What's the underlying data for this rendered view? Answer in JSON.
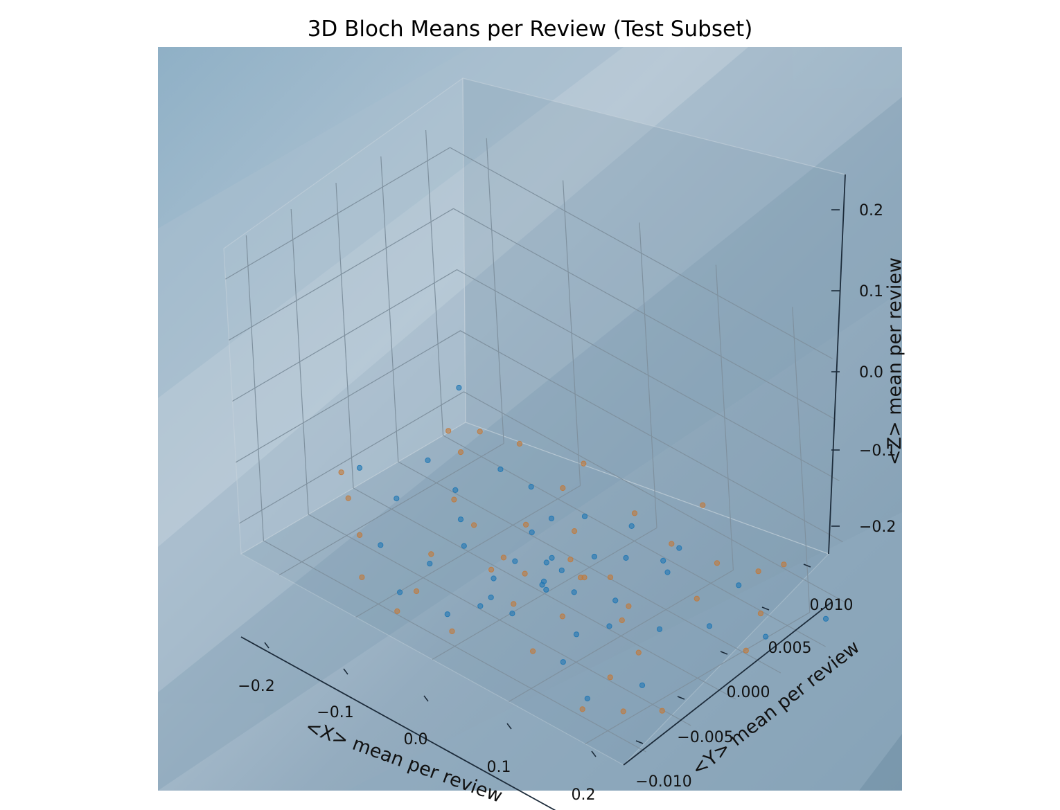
{
  "chart_data": {
    "type": "scatter",
    "projection": "3d",
    "title": "3D Bloch Means per Review (Test Subset)",
    "xlabel": "<X> mean per review",
    "ylabel": "<Y> mean per review",
    "zlabel": "<Z> mean per review",
    "xlim": [
      -0.25,
      0.25
    ],
    "ylim": [
      -0.0125,
      0.0125
    ],
    "zlim": [
      -0.25,
      0.25
    ],
    "x_ticks": [
      -0.2,
      -0.1,
      0.0,
      0.1,
      0.2
    ],
    "y_ticks": [
      -0.01,
      -0.005,
      0.0,
      0.005,
      0.01
    ],
    "z_ticks": [
      -0.2,
      -0.1,
      0.0,
      0.1,
      0.2
    ],
    "x_tick_labels": [
      "−0.2",
      "−0.1",
      "0.0",
      "0.1",
      "0.2"
    ],
    "y_tick_labels": [
      "−0.010",
      "−0.005",
      "0.000",
      "0.005",
      "0.010"
    ],
    "z_tick_labels": [
      "−0.2",
      "−0.1",
      "0.0",
      "0.1",
      "0.2"
    ],
    "grid": true,
    "series": [
      {
        "color": "#1f77b4",
        "points": [
          [
            -0.02,
            0.002,
            -0.23
          ],
          [
            0.01,
            -0.001,
            -0.22
          ],
          [
            -0.05,
            0.003,
            -0.21
          ],
          [
            0.04,
            0.0,
            -0.22
          ],
          [
            0.0,
            0.001,
            -0.2
          ],
          [
            -0.08,
            -0.002,
            -0.21
          ],
          [
            0.07,
            0.002,
            -0.23
          ],
          [
            -0.03,
            -0.003,
            -0.22
          ],
          [
            0.02,
            0.004,
            -0.21
          ],
          [
            -0.12,
            0.001,
            -0.22
          ],
          [
            0.11,
            -0.002,
            -0.21
          ],
          [
            -0.01,
            -0.005,
            -0.22
          ],
          [
            0.05,
            0.005,
            -0.2
          ],
          [
            -0.06,
            0.006,
            -0.22
          ],
          [
            0.09,
            -0.004,
            -0.22
          ],
          [
            -0.15,
            0.003,
            -0.21
          ],
          [
            0.14,
            0.001,
            -0.22
          ],
          [
            0.0,
            -0.007,
            -0.21
          ],
          [
            -0.04,
            0.008,
            -0.22
          ],
          [
            0.03,
            -0.006,
            -0.21
          ],
          [
            -0.09,
            -0.005,
            -0.22
          ],
          [
            0.08,
            0.007,
            -0.22
          ],
          [
            -0.18,
            -0.001,
            -0.21
          ],
          [
            0.17,
            0.004,
            -0.22
          ],
          [
            0.01,
            0.009,
            -0.21
          ],
          [
            -0.02,
            -0.009,
            -0.22
          ],
          [
            0.12,
            -0.008,
            -0.21
          ],
          [
            -0.11,
            0.008,
            -0.22
          ],
          [
            -0.24,
            0.0,
            -0.21
          ],
          [
            0.22,
            0.006,
            -0.22
          ],
          [
            0.2,
            -0.006,
            -0.21
          ],
          [
            -0.21,
            0.005,
            -0.22
          ],
          [
            0.06,
            0.01,
            -0.22
          ],
          [
            -0.07,
            -0.01,
            -0.21
          ],
          [
            0.24,
            0.011,
            -0.22
          ],
          [
            -0.13,
            -0.007,
            -0.2
          ],
          [
            0.15,
            0.009,
            -0.21
          ],
          [
            0.0,
            0.0,
            -0.23
          ],
          [
            -0.05,
            0.001,
            -0.24
          ],
          [
            0.04,
            -0.003,
            -0.19
          ],
          [
            -0.2,
            0.008,
            -0.12
          ],
          [
            -0.1,
            0.004,
            -0.15
          ],
          [
            0.05,
            -0.002,
            -0.16
          ],
          [
            0.1,
            0.005,
            -0.17
          ],
          [
            0.2,
            -0.012,
            -0.18
          ]
        ]
      },
      {
        "color": "#c2793a",
        "points": [
          [
            0.03,
            0.002,
            -0.22
          ],
          [
            -0.04,
            -0.001,
            -0.21
          ],
          [
            0.06,
            -0.003,
            -0.22
          ],
          [
            -0.07,
            0.004,
            -0.22
          ],
          [
            0.1,
            0.001,
            -0.21
          ],
          [
            -0.1,
            -0.004,
            -0.22
          ],
          [
            0.13,
            0.006,
            -0.22
          ],
          [
            -0.14,
            0.002,
            -0.21
          ],
          [
            0.0,
            0.003,
            -0.22
          ],
          [
            0.02,
            -0.005,
            -0.21
          ],
          [
            -0.03,
            0.006,
            -0.22
          ],
          [
            0.16,
            -0.003,
            -0.21
          ],
          [
            -0.17,
            -0.006,
            -0.22
          ],
          [
            0.19,
            0.008,
            -0.22
          ],
          [
            -0.19,
            0.007,
            -0.21
          ],
          [
            0.08,
            -0.008,
            -0.22
          ],
          [
            -0.08,
            0.009,
            -0.21
          ],
          [
            0.05,
            0.01,
            -0.22
          ],
          [
            -0.06,
            -0.009,
            -0.21
          ],
          [
            0.21,
            -0.009,
            -0.22
          ],
          [
            -0.22,
            -0.003,
            -0.22
          ],
          [
            0.11,
            0.01,
            -0.21
          ],
          [
            -0.12,
            -0.01,
            -0.22
          ],
          [
            0.01,
            -0.011,
            -0.21
          ],
          [
            -0.01,
            0.011,
            -0.22
          ],
          [
            0.23,
            0.003,
            -0.21
          ],
          [
            -0.23,
            0.009,
            -0.22
          ],
          [
            0.18,
            -0.011,
            -0.22
          ],
          [
            -0.16,
            0.011,
            -0.21
          ],
          [
            0.0,
            -0.002,
            -0.2
          ],
          [
            0.04,
            0.004,
            -0.23
          ],
          [
            -0.02,
            -0.004,
            -0.19
          ],
          [
            0.09,
            0.001,
            -0.24
          ],
          [
            -0.09,
            0.0,
            -0.2
          ],
          [
            0.14,
            0.012,
            -0.22
          ],
          [
            -0.05,
            -0.012,
            -0.21
          ],
          [
            0.0,
            0.005,
            -0.08
          ],
          [
            0.1,
            -0.004,
            -0.12
          ],
          [
            -0.15,
            0.006,
            -0.14
          ],
          [
            0.2,
            0.01,
            -0.15
          ],
          [
            0.22,
            -0.011,
            -0.14
          ],
          [
            -0.24,
            -0.002,
            -0.2
          ],
          [
            0.25,
            -0.008,
            -0.2
          ],
          [
            0.07,
            0.012,
            -0.16
          ]
        ]
      }
    ]
  }
}
